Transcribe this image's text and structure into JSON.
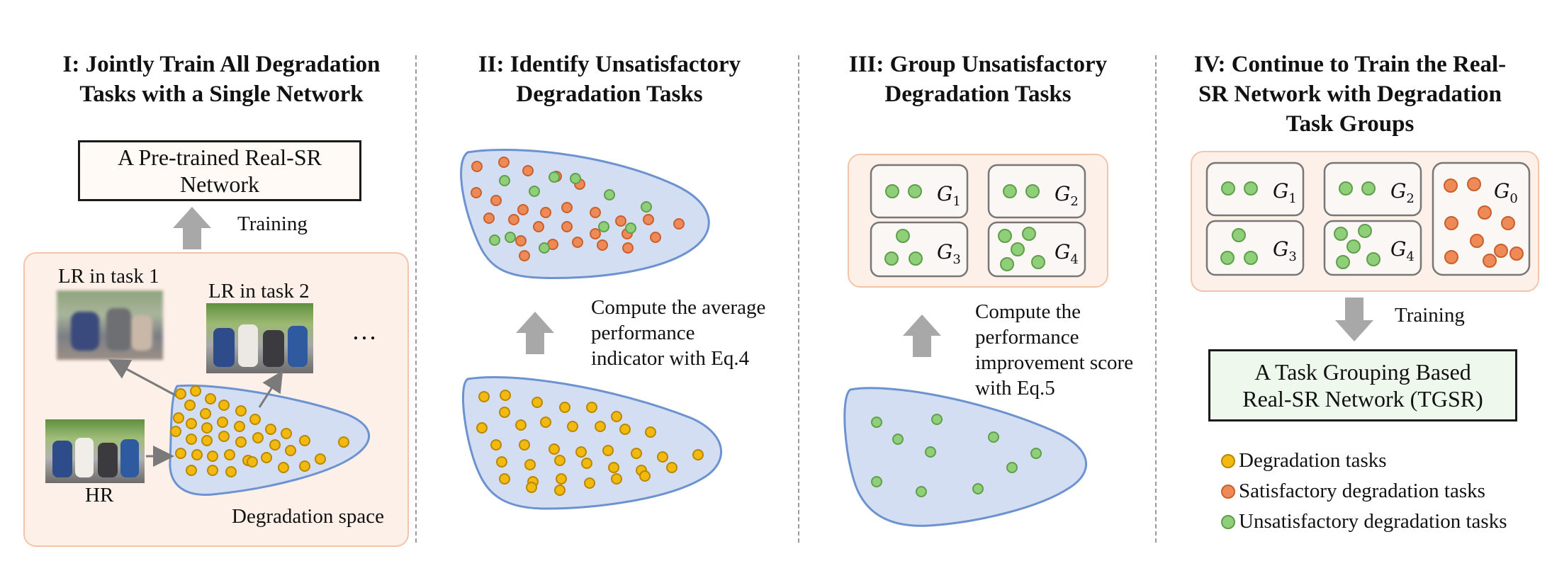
{
  "steps": {
    "s1": {
      "title_line1": "I: Jointly Train All Degradation",
      "title_line2": "Tasks with a Single Network"
    },
    "s2": {
      "title_line1": "II: Identify Unsatisfactory",
      "title_line2": "Degradation Tasks"
    },
    "s3": {
      "title_line1": "III: Group Unsatisfactory",
      "title_line2": "Degradation Tasks"
    },
    "s4": {
      "title_line1": "IV: Continue to Train the Real-",
      "title_line2": "SR Network with Degradation",
      "title_line3": "Task Groups"
    }
  },
  "panel1": {
    "pretrained_line1": "A Pre-trained Real-SR",
    "pretrained_line2": "Network",
    "training": "Training",
    "lr_task1": "LR in task 1",
    "lr_task2": "LR in task 2",
    "ellipsis": "…",
    "hr": "HR",
    "space": "Degradation space"
  },
  "panel2": {
    "compute_line1": "Compute the average",
    "compute_line2": "performance",
    "compute_line3": "indicator with Eq.4"
  },
  "panel3": {
    "compute_line1": "Compute the",
    "compute_line2": "performance",
    "compute_line3": "improvement score",
    "compute_line4": "with Eq.5",
    "groups": [
      "G1",
      "G2",
      "G3",
      "G4"
    ]
  },
  "panel4": {
    "training": "Training",
    "tgsr_line1": "A Task Grouping Based",
    "tgsr_line2": "Real-SR Network (TGSR)",
    "groups": [
      "G1",
      "G2",
      "G3",
      "G4",
      "G0"
    ]
  },
  "legend": [
    {
      "label": "Degradation tasks",
      "color": "#f2b90f"
    },
    {
      "label": "Satisfactory degradation tasks",
      "color": "#ee8a58"
    },
    {
      "label": "Unsatisfactory degradation tasks",
      "color": "#8fcf7a"
    }
  ],
  "colors": {
    "yellow": "#f2b90f",
    "orange": "#ee8a58",
    "green": "#8fcf7a",
    "blob_fill": "#d4def3",
    "blob_stroke": "#6c93cf",
    "panel_fill": "#fdf0e9",
    "arrow": "#a8a8a8"
  }
}
